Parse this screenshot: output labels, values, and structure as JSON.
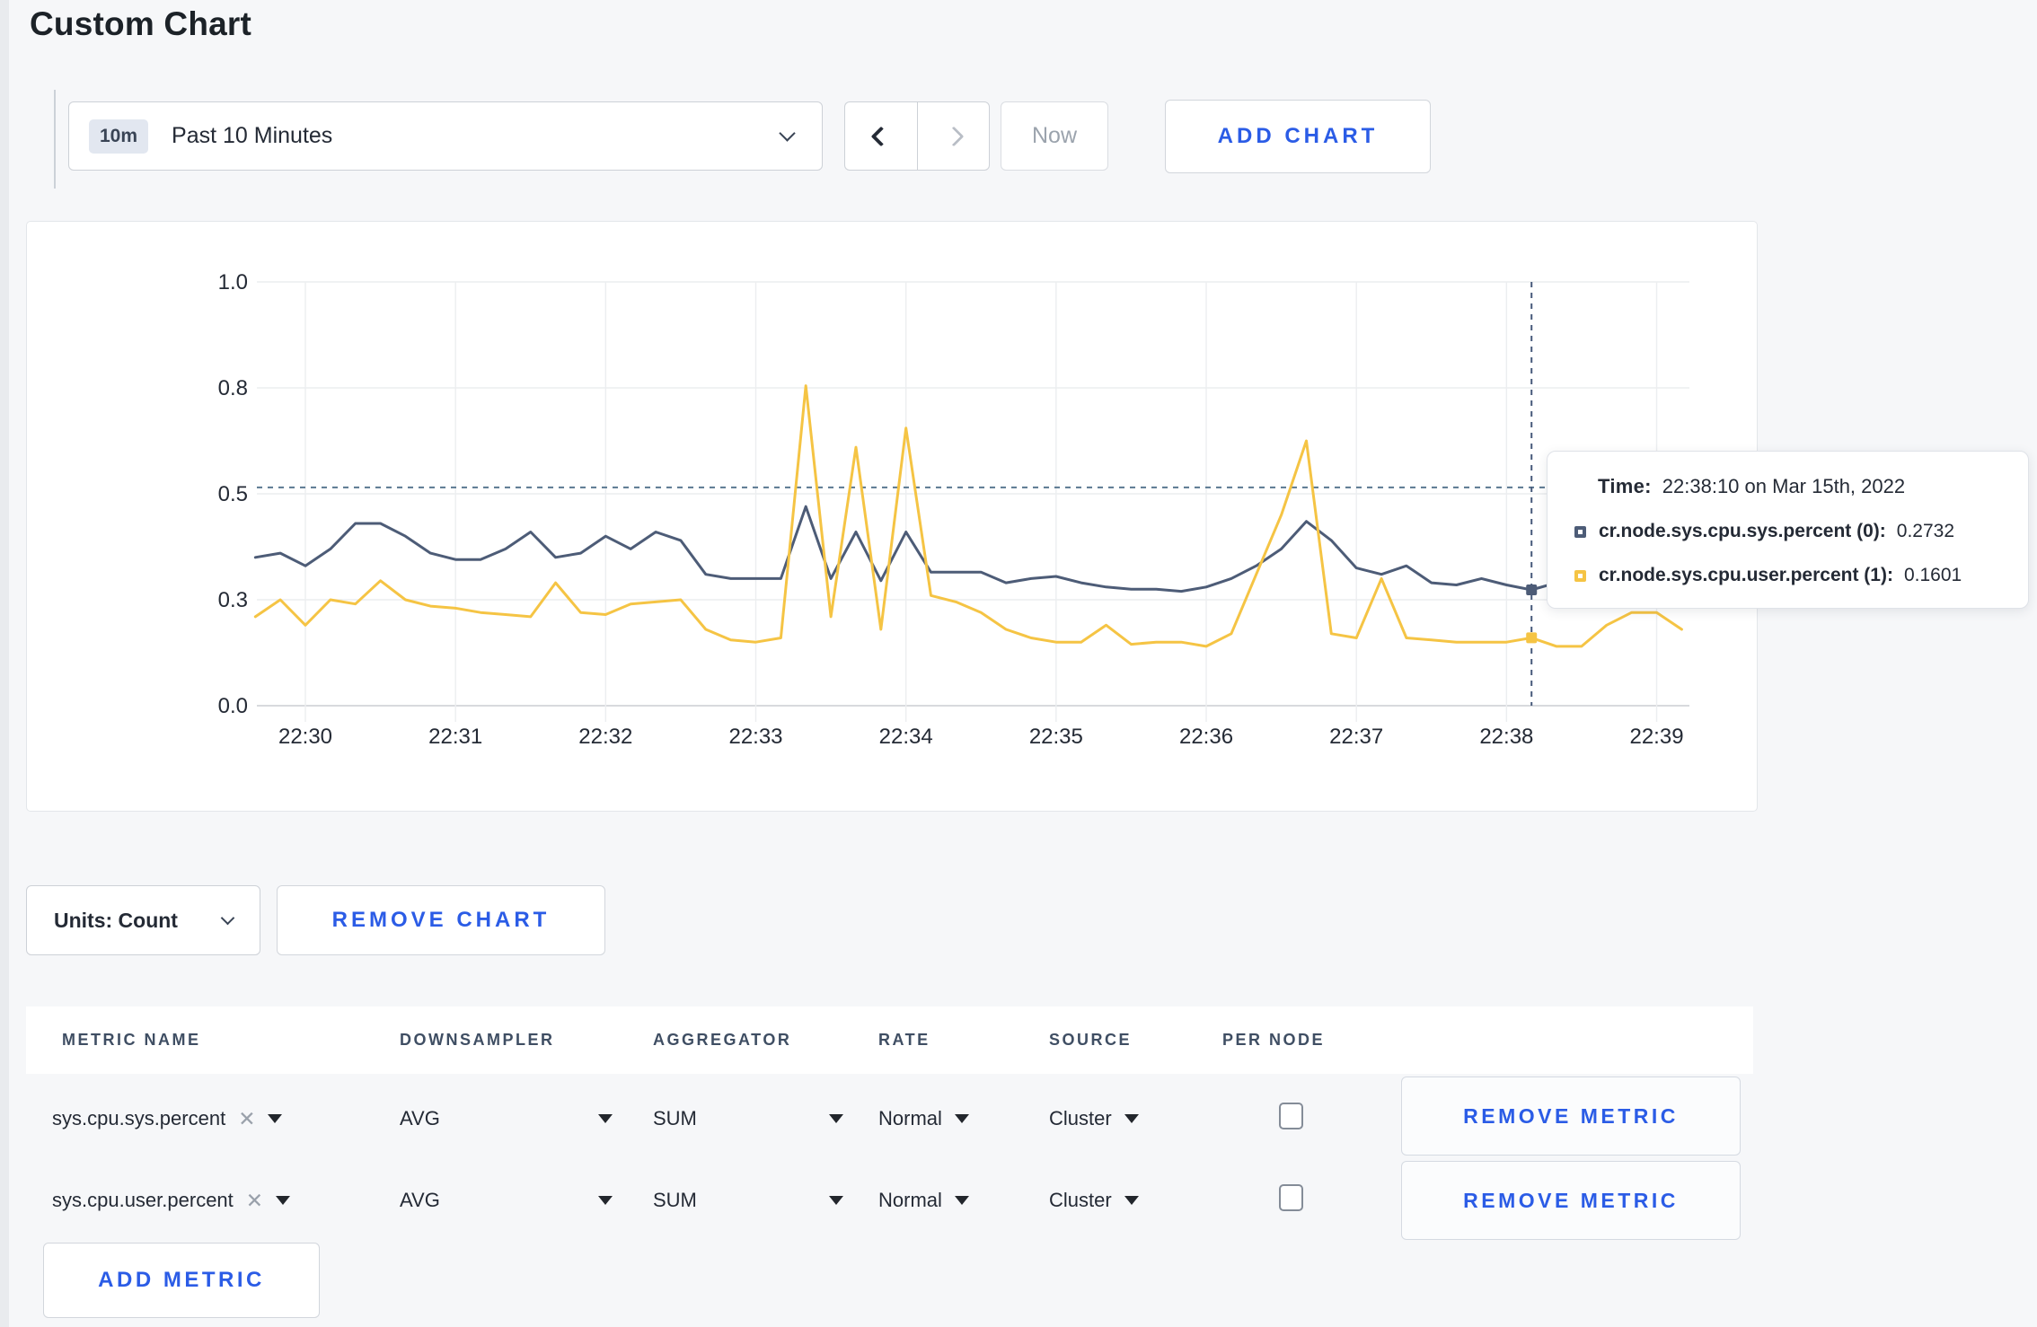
{
  "page": {
    "title": "Custom Chart"
  },
  "toolbar": {
    "time_badge": "10m",
    "time_label": "Past 10 Minutes",
    "now_label": "Now",
    "add_chart_label": "ADD CHART"
  },
  "chart_controls": {
    "units_label": "Units: Count",
    "remove_chart_label": "REMOVE CHART"
  },
  "tooltip": {
    "time_label": "Time:",
    "time_value": "22:38:10 on Mar 15th, 2022",
    "series": [
      {
        "name": "cr.node.sys.cpu.sys.percent (0):",
        "value": "0.2732",
        "color": "#4d5c77"
      },
      {
        "name": "cr.node.sys.cpu.user.percent (1):",
        "value": "0.1601",
        "color": "#f5c444"
      }
    ]
  },
  "icons": {
    "clear": "✕"
  },
  "table": {
    "headers": [
      "METRIC NAME",
      "DOWNSAMPLER",
      "AGGREGATOR",
      "RATE",
      "SOURCE",
      "PER NODE"
    ],
    "rows": [
      {
        "metric": "sys.cpu.sys.percent",
        "downsampler": "AVG",
        "aggregator": "SUM",
        "rate": "Normal",
        "source": "Cluster",
        "per_node": false
      },
      {
        "metric": "sys.cpu.user.percent",
        "downsampler": "AVG",
        "aggregator": "SUM",
        "rate": "Normal",
        "source": "Cluster",
        "per_node": false
      }
    ],
    "remove_metric_label": "REMOVE METRIC",
    "add_metric_label": "ADD METRIC"
  },
  "chart_data": {
    "type": "line",
    "title": "",
    "xlabel": "",
    "ylabel": "",
    "ylim": [
      0,
      1
    ],
    "grid": true,
    "start_time": "22:29:40",
    "interval_seconds": 10,
    "x_ticks": [
      "22:30",
      "22:31",
      "22:32",
      "22:33",
      "22:34",
      "22:35",
      "22:36",
      "22:37",
      "22:38",
      "22:39"
    ],
    "y_ticks": [
      {
        "v": 0,
        "label": "0.0"
      },
      {
        "v": 0.25,
        "label": "0.3"
      },
      {
        "v": 0.5,
        "label": "0.5"
      },
      {
        "v": 0.75,
        "label": "0.8"
      },
      {
        "v": 1,
        "label": "1.0"
      }
    ],
    "series": [
      {
        "name": "cr.node.sys.cpu.sys.percent",
        "color": "#4d5c77",
        "values": [
          0.35,
          0.36,
          0.33,
          0.37,
          0.43,
          0.43,
          0.4,
          0.36,
          0.345,
          0.345,
          0.37,
          0.41,
          0.35,
          0.36,
          0.4,
          0.37,
          0.41,
          0.39,
          0.31,
          0.3,
          0.3,
          0.3,
          0.47,
          0.3,
          0.41,
          0.295,
          0.41,
          0.315,
          0.315,
          0.315,
          0.29,
          0.3,
          0.305,
          0.29,
          0.28,
          0.275,
          0.275,
          0.27,
          0.28,
          0.3,
          0.33,
          0.37,
          0.435,
          0.39,
          0.325,
          0.31,
          0.33,
          0.29,
          0.285,
          0.3,
          0.285,
          0.2732,
          0.29,
          0.31,
          0.3,
          0.3,
          0.295,
          0.31
        ]
      },
      {
        "name": "cr.node.sys.cpu.user.percent",
        "color": "#f5c444",
        "values": [
          0.21,
          0.25,
          0.19,
          0.25,
          0.24,
          0.295,
          0.25,
          0.235,
          0.23,
          0.22,
          0.215,
          0.21,
          0.29,
          0.22,
          0.215,
          0.24,
          0.245,
          0.25,
          0.18,
          0.155,
          0.15,
          0.16,
          0.755,
          0.21,
          0.61,
          0.18,
          0.655,
          0.26,
          0.245,
          0.22,
          0.18,
          0.16,
          0.15,
          0.15,
          0.19,
          0.145,
          0.15,
          0.15,
          0.14,
          0.17,
          0.31,
          0.45,
          0.625,
          0.17,
          0.16,
          0.3,
          0.16,
          0.155,
          0.15,
          0.15,
          0.15,
          0.1601,
          0.14,
          0.14,
          0.19,
          0.22,
          0.22,
          0.18
        ]
      }
    ],
    "crosshair": {
      "time": "22:38:10",
      "index": 51,
      "y_value": 0.515,
      "values": [
        0.2732,
        0.1601
      ]
    },
    "legend_position": "tooltip"
  }
}
